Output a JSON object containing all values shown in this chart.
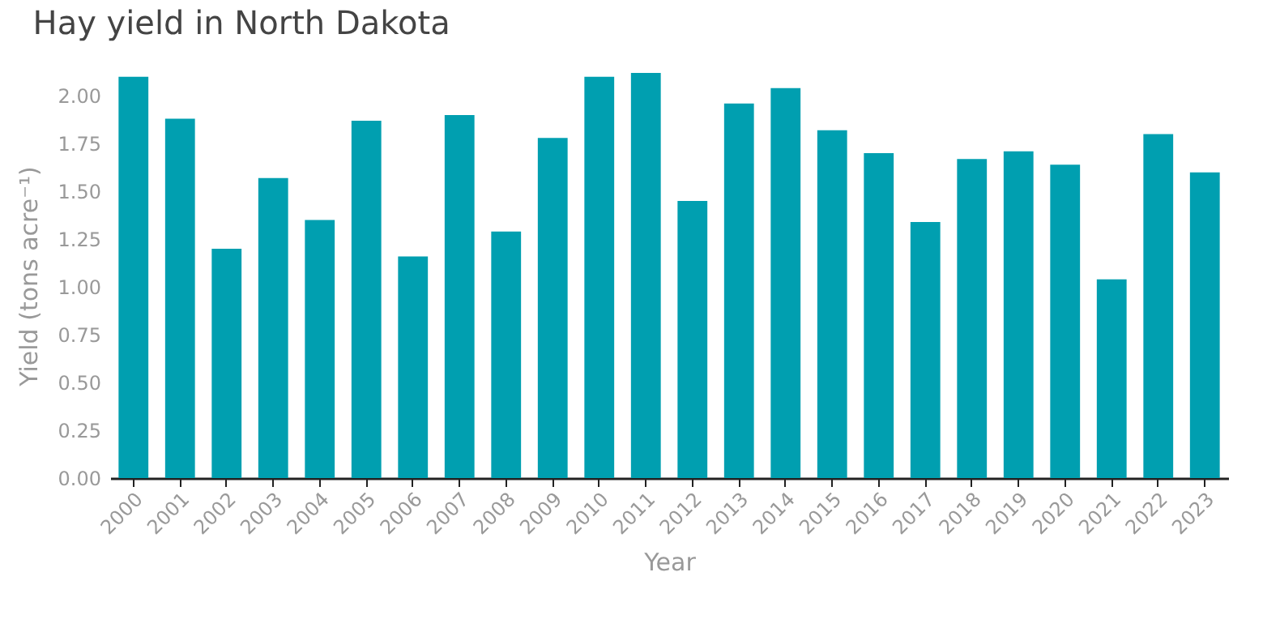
{
  "chart_data": {
    "type": "bar",
    "title": "Hay yield in North Dakota",
    "xlabel": "Year",
    "ylabel": "Yield (tons acre⁻¹)",
    "categories": [
      "2000",
      "2001",
      "2002",
      "2003",
      "2004",
      "2005",
      "2006",
      "2007",
      "2008",
      "2009",
      "2010",
      "2011",
      "2012",
      "2013",
      "2014",
      "2015",
      "2016",
      "2017",
      "2018",
      "2019",
      "2020",
      "2021",
      "2022",
      "2023"
    ],
    "values": [
      2.1,
      1.88,
      1.2,
      1.57,
      1.35,
      1.87,
      1.16,
      1.9,
      1.29,
      1.78,
      2.1,
      2.12,
      1.45,
      1.96,
      2.04,
      1.82,
      1.7,
      1.34,
      1.67,
      1.71,
      1.64,
      1.04,
      1.8,
      1.6
    ],
    "color": "#009fb0",
    "yticks": [
      {
        "value": 0,
        "label": "0.00"
      },
      {
        "value": 0.25,
        "label": "0.25"
      },
      {
        "value": 0.5,
        "label": "0.50"
      },
      {
        "value": 0.75,
        "label": "0.75"
      },
      {
        "value": 1,
        "label": "1.00"
      },
      {
        "value": 1.25,
        "label": "1.25"
      },
      {
        "value": 1.5,
        "label": "1.50"
      },
      {
        "value": 1.75,
        "label": "1.75"
      },
      {
        "value": 2,
        "label": "2.00"
      }
    ],
    "ylim": [
      0,
      2.12
    ],
    "grid": false
  }
}
